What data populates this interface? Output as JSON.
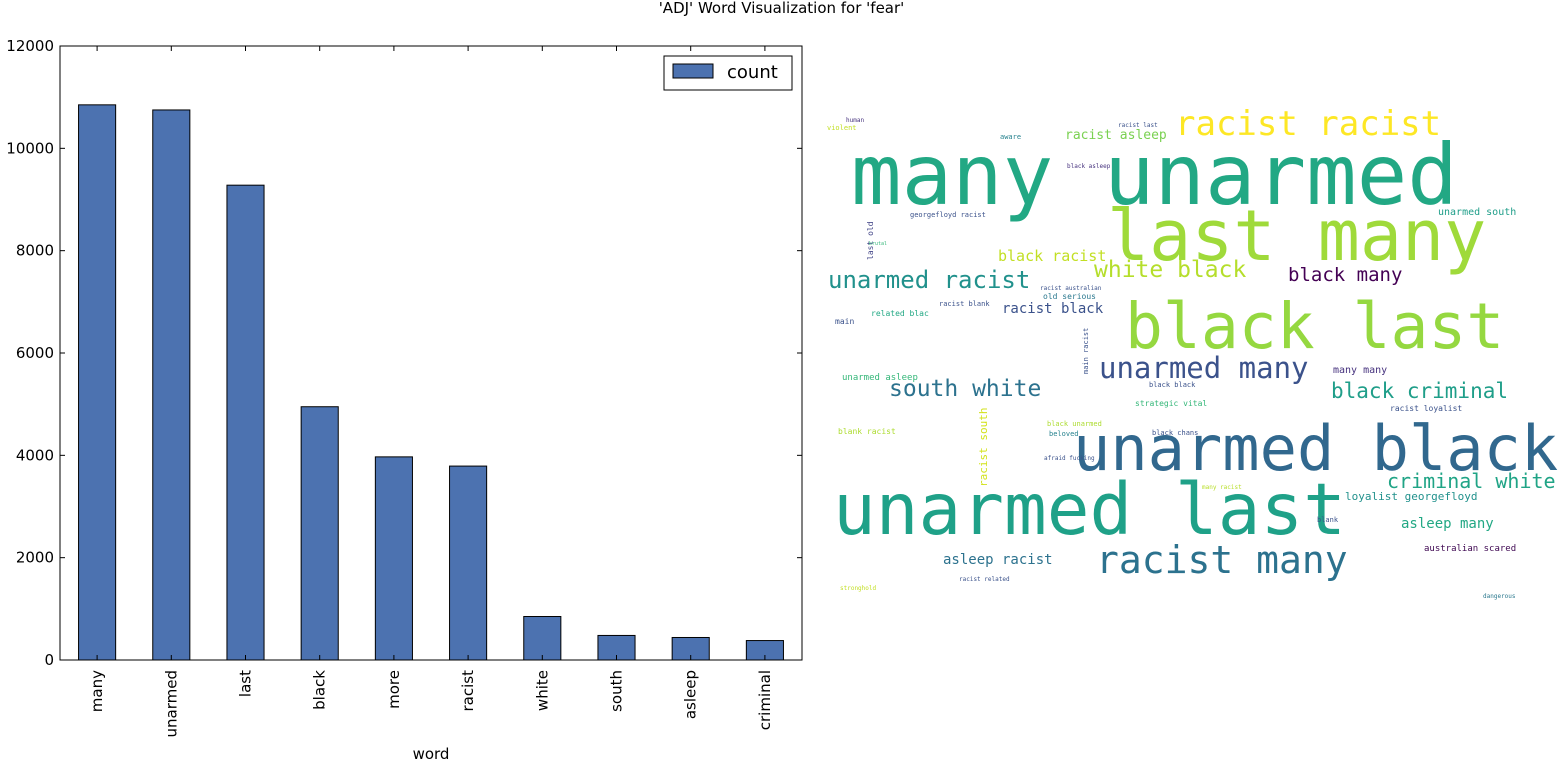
{
  "figure_title": "'ADJ' Word Visualization for 'fear'",
  "chart_data": [
    {
      "type": "bar",
      "title": "",
      "xlabel": "word",
      "ylabel": "",
      "ylim": [
        0,
        12000
      ],
      "yticks": [
        0,
        2000,
        4000,
        6000,
        8000,
        10000,
        12000
      ],
      "grid": false,
      "legend_position": "top-right",
      "categories": [
        "many",
        "unarmed",
        "last",
        "black",
        "more",
        "racist",
        "white",
        "south",
        "asleep",
        "criminal"
      ],
      "series": [
        {
          "name": "count",
          "color": "#4c72b0",
          "values": [
            10850,
            10750,
            9280,
            4950,
            3970,
            3790,
            850,
            480,
            440,
            380
          ]
        }
      ]
    }
  ],
  "wordcloud": {
    "colormap": "viridis",
    "words": [
      {
        "text": "many unarmed",
        "color": "#22a884"
      },
      {
        "text": "last many",
        "color": "#9fda3a"
      },
      {
        "text": "black last",
        "color": "#95d840"
      },
      {
        "text": "unarmed black",
        "color": "#31688e"
      },
      {
        "text": "unarmed last",
        "color": "#1fa188"
      },
      {
        "text": "racist racist",
        "color": "#fde725"
      },
      {
        "text": "racist many",
        "color": "#2c728e"
      },
      {
        "text": "unarmed many",
        "color": "#3b528b"
      },
      {
        "text": "unarmed racist",
        "color": "#21918c"
      },
      {
        "text": "white black",
        "color": "#b5de2b"
      },
      {
        "text": "south white",
        "color": "#2c728e"
      },
      {
        "text": "black criminal",
        "color": "#1f9e89"
      },
      {
        "text": "criminal white",
        "color": "#20a486"
      },
      {
        "text": "black many",
        "color": "#440154"
      },
      {
        "text": "black racist",
        "color": "#c2df23"
      },
      {
        "text": "racist asleep",
        "color": "#7ad151"
      },
      {
        "text": "racist black",
        "color": "#3b528b"
      },
      {
        "text": "asleep racist",
        "color": "#2c728e"
      },
      {
        "text": "asleep many",
        "color": "#22a884"
      },
      {
        "text": "loyalist georgefloyd",
        "color": "#21918c"
      },
      {
        "text": "unarmed south",
        "color": "#1f9e89"
      },
      {
        "text": "many many",
        "color": "#46327e"
      },
      {
        "text": "australian scared",
        "color": "#3e0751"
      },
      {
        "text": "racist south",
        "color": "#d2e21b"
      },
      {
        "text": "unarmed asleep",
        "color": "#35b779"
      },
      {
        "text": "georgefloyd racist",
        "color": "#3b528b"
      },
      {
        "text": "last old",
        "color": "#414487"
      },
      {
        "text": "aware",
        "color": "#26828e"
      },
      {
        "text": "related blac",
        "color": "#22a884"
      },
      {
        "text": "blank racist",
        "color": "#addc30"
      },
      {
        "text": "strategic vital",
        "color": "#35b779"
      },
      {
        "text": "racist blank",
        "color": "#3b528b"
      },
      {
        "text": "old serious",
        "color": "#2a788e"
      },
      {
        "text": "main racist",
        "color": "#3b528b"
      },
      {
        "text": "racist loyalist",
        "color": "#3b528b"
      },
      {
        "text": "black chans",
        "color": "#3b528b"
      },
      {
        "text": "black asleep",
        "color": "#46327e"
      },
      {
        "text": "many racist",
        "color": "#b8de29"
      },
      {
        "text": "main",
        "color": "#3b528b"
      },
      {
        "text": "racist australian",
        "color": "#3b528b"
      },
      {
        "text": "black black",
        "color": "#3b528b"
      },
      {
        "text": "black unarmed",
        "color": "#addc30"
      },
      {
        "text": "racist last",
        "color": "#3b528b"
      },
      {
        "text": "violent",
        "color": "#c2df23"
      },
      {
        "text": "dangerous",
        "color": "#2a788e"
      },
      {
        "text": "blank",
        "color": "#3b528b"
      },
      {
        "text": "racist related",
        "color": "#3b528b"
      },
      {
        "text": "beloved",
        "color": "#26828e"
      },
      {
        "text": "afraid fucking",
        "color": "#3b528b"
      },
      {
        "text": "human",
        "color": "#46327e"
      },
      {
        "text": "brutal",
        "color": "#35b779"
      },
      {
        "text": "stronghold",
        "color": "#c2df23"
      }
    ]
  }
}
